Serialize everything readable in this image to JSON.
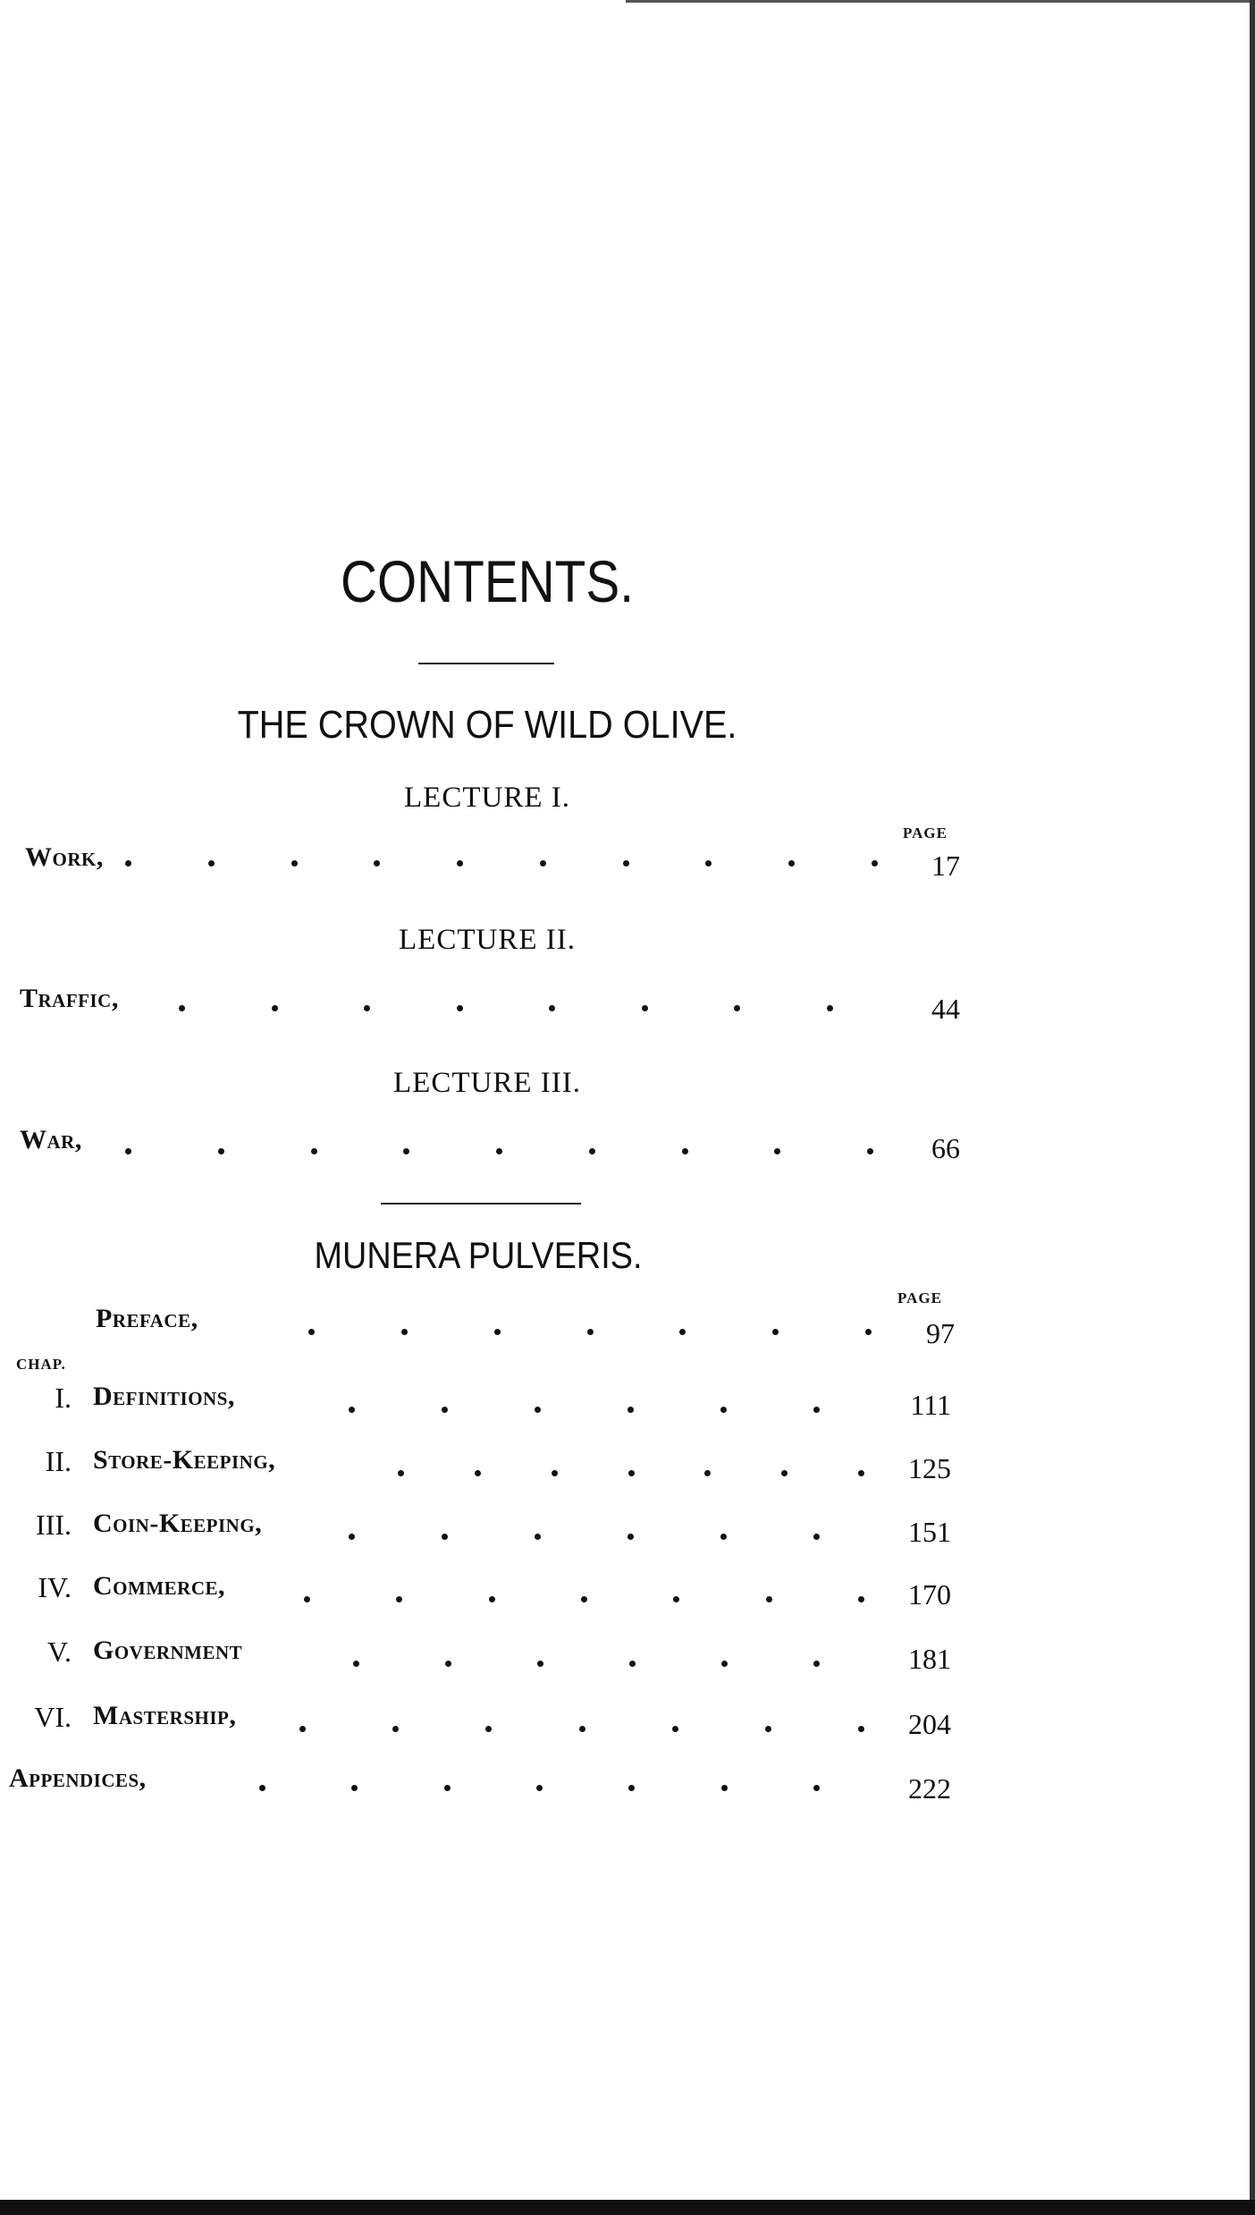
{
  "heading": "CONTENTS.",
  "part1": {
    "title": "THE CROWN OF WILD OLIVE.",
    "page_header": "PAGE",
    "lectures": [
      {
        "heading": "LECTURE I.",
        "entry": "Work,",
        "page": "17"
      },
      {
        "heading": "LECTURE II.",
        "entry": "Traffic,",
        "page": "44"
      },
      {
        "heading": "LECTURE III.",
        "entry": "War,",
        "page": "66"
      }
    ]
  },
  "part2": {
    "title": "MUNERA PULVERIS.",
    "page_header": "PAGE",
    "preface": {
      "label": "Preface,",
      "page": "97"
    },
    "chap_header": "CHAP.",
    "chapters": [
      {
        "numeral": "I.",
        "label": "Definitions,",
        "page": "111"
      },
      {
        "numeral": "II.",
        "label": "Store-Keeping,",
        "page": "125"
      },
      {
        "numeral": "III.",
        "label": "Coin-Keeping,",
        "page": "151"
      },
      {
        "numeral": "IV.",
        "label": "Commerce,",
        "page": "170"
      },
      {
        "numeral": "V.",
        "label": "Government",
        "page": "181"
      },
      {
        "numeral": "VI.",
        "label": "Mastership,",
        "page": "204"
      }
    ],
    "appendices": {
      "label": "Appendices,",
      "page": "222"
    }
  }
}
